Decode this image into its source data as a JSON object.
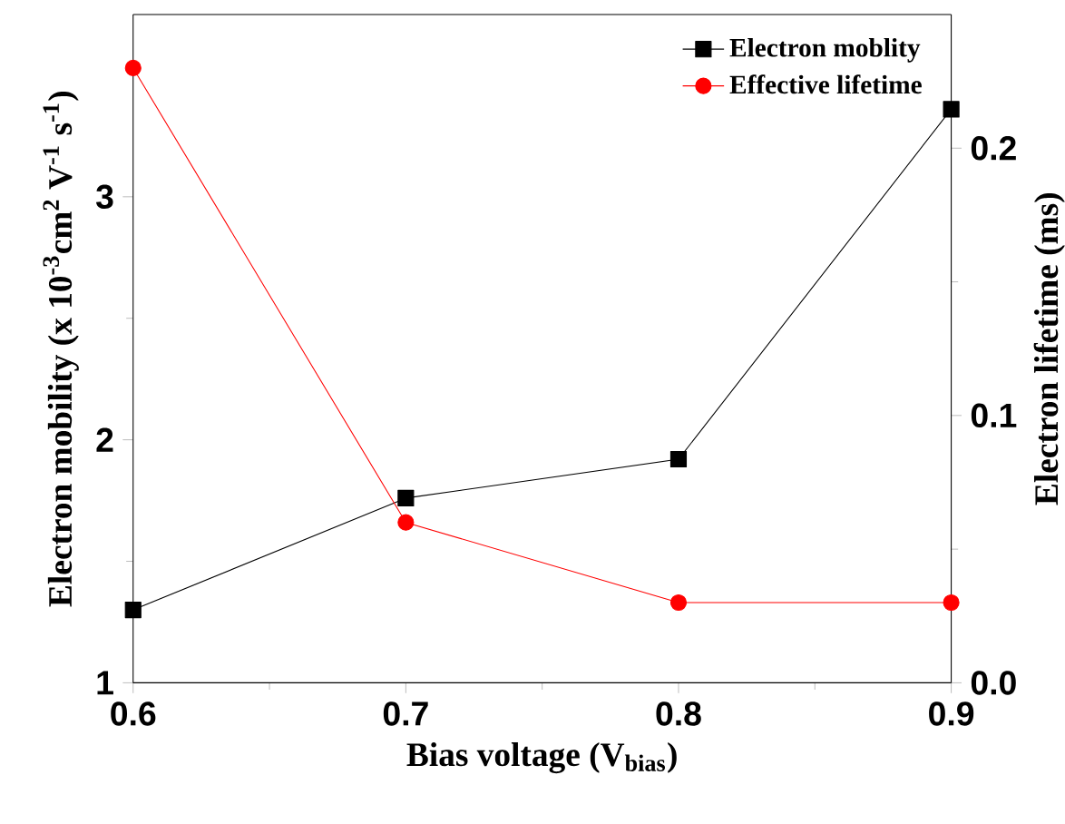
{
  "chart_data": {
    "type": "line",
    "xlabel": "Bias voltage (V$_{bias}$)",
    "ylabel": "Electron mobility (x 10$^{-3}$cm$^{2}$ V$^{-1}$ s$^{-1}$)",
    "y2label": "Electron lifetime (ms)",
    "x": [
      0.6,
      0.7,
      0.8,
      0.9
    ],
    "xlim": [
      0.6,
      0.9
    ],
    "xticks": [
      0.6,
      0.7,
      0.8,
      0.9
    ],
    "ylim": [
      1,
      3.75
    ],
    "yticks": [
      1,
      2,
      3
    ],
    "y2lim": [
      0,
      0.25
    ],
    "y2ticks": [
      {
        "value": 0,
        "label": "0.0"
      },
      0.1,
      0.2
    ],
    "legend": "top right",
    "series": [
      {
        "name": "Electron moblity",
        "color": "#000000",
        "marker": "square",
        "values": [
          1.3,
          1.76,
          1.92,
          3.36
        ]
      },
      {
        "name": "Effective lifetime",
        "color": "#ff0000",
        "marker": "circle",
        "axis": "y2",
        "values": [
          0.23,
          0.06,
          0.03,
          0.03
        ]
      }
    ]
  }
}
